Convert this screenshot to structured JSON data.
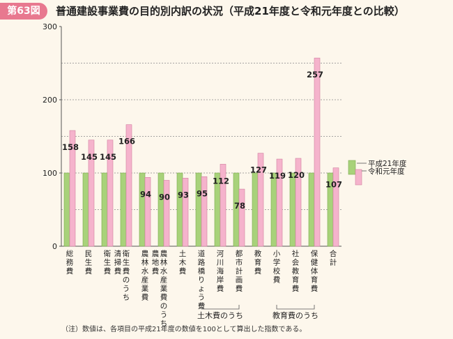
{
  "header": {
    "badge": "第63図",
    "title": "普通建設事業費の目的別内訳の状況（平成21年度と令和元年度との比較）"
  },
  "note": "（注）数値は、各項目の平成21年度の数値を100として算出した指数である。",
  "colors": {
    "h21": "#a8d27a",
    "r1": "#f5b3cc",
    "axis": "#555555",
    "grid": "#888888",
    "text": "#222222"
  },
  "chart_data": {
    "type": "bar",
    "ylim": [
      0,
      300
    ],
    "yticks": [
      "0",
      "100",
      "200",
      "300"
    ],
    "grid": "dashed lines at 50, 100, 150, 200, 250",
    "legend_position": "right",
    "categories": [
      [
        "総務費"
      ],
      [
        "民生費"
      ],
      [
        "衛生費"
      ],
      [
        "衛生費のうち",
        "清掃費"
      ],
      [
        "農林水産業費"
      ],
      [
        "農林水産業費のうち",
        "農地費"
      ],
      [
        "土木費"
      ],
      [
        "道路橋りょう費"
      ],
      [
        "河川海岸費"
      ],
      [
        "都市計画費"
      ],
      [
        "教育費"
      ],
      [
        "小学校費"
      ],
      [
        "社会教育費"
      ],
      [
        "保健体育費"
      ],
      [
        "合計"
      ]
    ],
    "series": [
      {
        "name": "平成21年度",
        "values": [
          100,
          100,
          100,
          100,
          100,
          100,
          100,
          100,
          100,
          100,
          100,
          100,
          100,
          100,
          100
        ]
      },
      {
        "name": "令和元年度",
        "values": [
          158,
          145,
          145,
          166,
          94,
          90,
          93,
          95,
          112,
          78,
          127,
          119,
          120,
          257,
          107
        ]
      }
    ],
    "value_labels": [
      "158",
      "145",
      "145",
      "166",
      "94",
      "90",
      "93",
      "95",
      "112",
      "78",
      "127",
      "119",
      "120",
      "257",
      "107"
    ],
    "group_labels": [
      {
        "label": "土木費のうち",
        "from": 7,
        "to": 9
      },
      {
        "label": "教育費のうち",
        "from": 11,
        "to": 13
      }
    ]
  }
}
